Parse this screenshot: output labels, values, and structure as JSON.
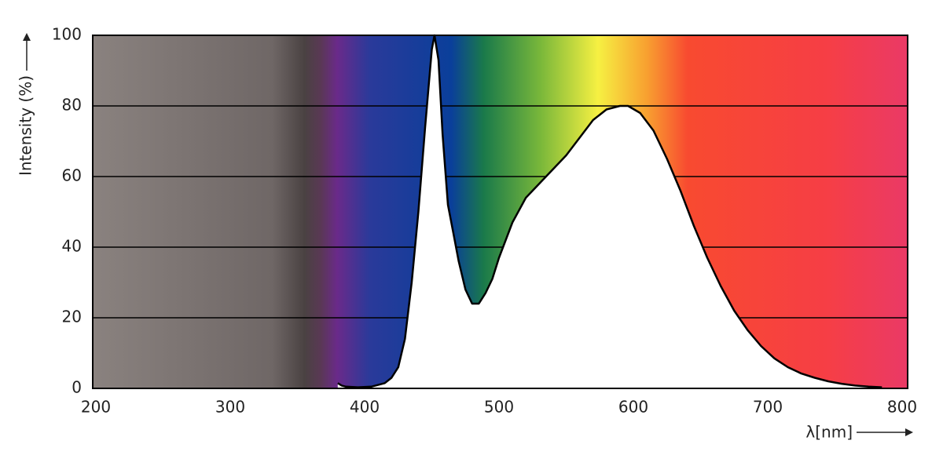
{
  "chart_data": {
    "type": "area",
    "ylabel": "Intensity (%)",
    "xlabel": "λ[nm]",
    "x": [
      380,
      383,
      386,
      395,
      405,
      415,
      420,
      425,
      430,
      435,
      440,
      445,
      450,
      452,
      455,
      458,
      462,
      466,
      470,
      475,
      480,
      485,
      490,
      495,
      500,
      510,
      520,
      530,
      540,
      550,
      560,
      570,
      580,
      590,
      596,
      605,
      615,
      625,
      635,
      645,
      655,
      665,
      675,
      685,
      695,
      705,
      715,
      725,
      735,
      745,
      755,
      765,
      775,
      785
    ],
    "values": [
      1.5,
      0.8,
      0.5,
      0.3,
      0.5,
      1.5,
      3,
      6,
      14,
      30,
      50,
      74,
      96,
      100,
      93,
      72,
      52,
      44,
      36,
      28,
      24,
      24,
      27,
      31,
      37,
      47,
      54,
      58,
      62,
      66,
      71,
      76,
      79,
      80,
      80,
      78,
      73,
      65,
      56,
      46,
      37,
      29,
      22,
      16.5,
      12,
      8.5,
      6,
      4.2,
      3,
      2,
      1.3,
      0.8,
      0.5,
      0.3
    ],
    "color": "#000000",
    "fill": "#ffffff",
    "xlim": [
      200,
      800
    ],
    "xticks": [
      200,
      300,
      400,
      500,
      600,
      700,
      800
    ],
    "ylim": [
      0,
      100
    ],
    "yticks": [
      0,
      20,
      40,
      60,
      80,
      100
    ],
    "grid": true
  }
}
